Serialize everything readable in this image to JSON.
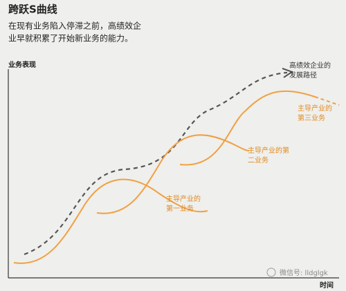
{
  "title": "跨跃S曲线",
  "subtitle": [
    "在现有业务陷入停滞之前，高绩效企",
    "业早就积累了开始新业务的能力。"
  ],
  "y_axis_label": "业务表现",
  "x_axis_label": "时间",
  "annotations": [
    {
      "lines": [
        "高绩效企业的",
        "发展路径"
      ]
    },
    {
      "lines": [
        "主导产业的",
        "第三业务"
      ]
    },
    {
      "lines": [
        "主导产业的第",
        "二业务"
      ]
    },
    {
      "lines": [
        "主导产业的",
        "第一业务"
      ]
    }
  ],
  "watermark": "微信号: lldglgk"
}
